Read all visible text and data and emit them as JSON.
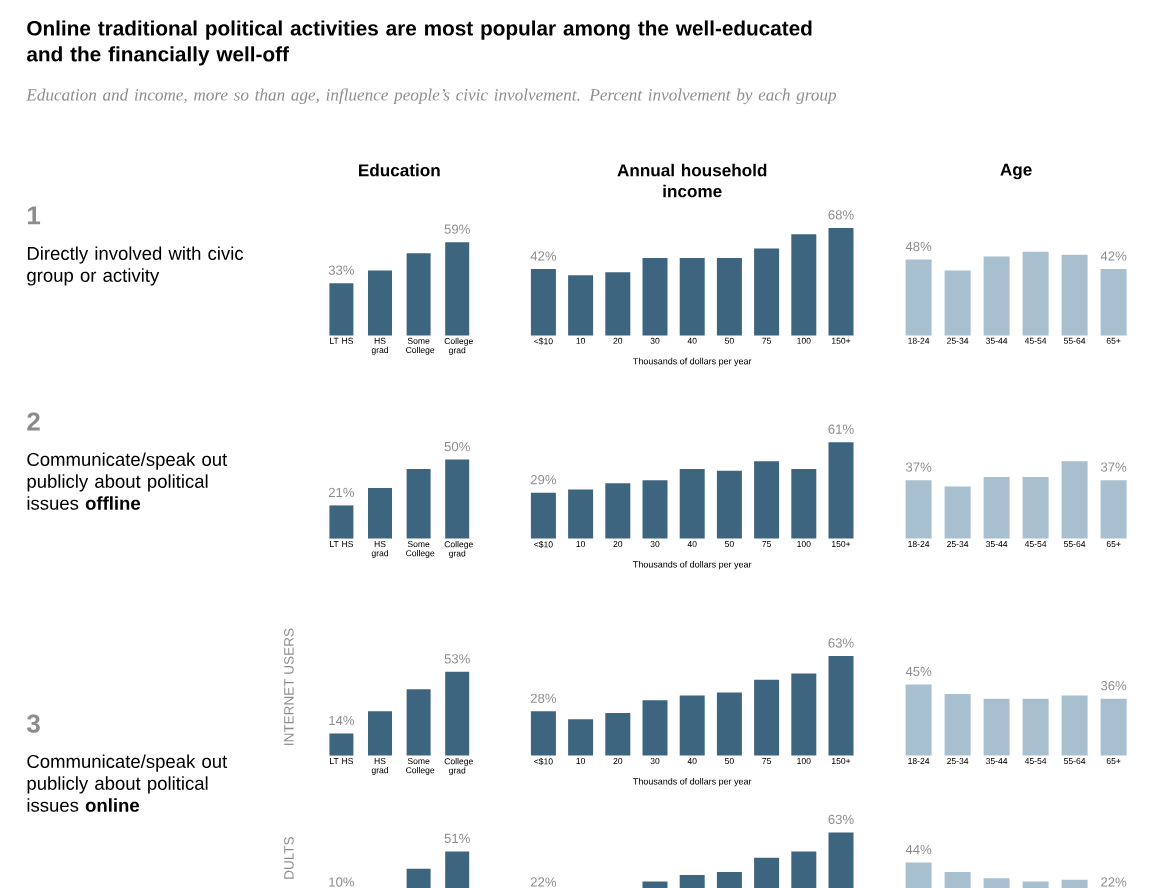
{
  "chart_data": [
    {
      "type": "other",
      "title": "Online traditional political activities are most popular among the well-educated and the financially well-off",
      "subtitle": "Education and income, more so than age, influence people’s civic involvement. Percent involvement by each group",
      "annotations": [
        "1",
        "Directly involved with civic group or activity",
        "2",
        "Communicate/speak out publicly about political issues **offline**",
        "3",
        "Communicate/speak out publicly about political issues **online**"
      ]
    },
    {
      "type": "bar",
      "title": "Education",
      "categories": [
        "LT HS",
        "HS grad",
        "Some College",
        "College grad"
      ],
      "values": [
        33,
        41,
        52,
        59
      ],
      "value_labels": [
        "33%",
        null,
        null,
        "59%"
      ],
      "color": "#3e6580"
    },
    {
      "type": "bar",
      "title": "Annual household income",
      "xlabel": "Thousands of dollars per year",
      "categories": [
        "<$10",
        "10",
        "20",
        "30",
        "40",
        "50",
        "75",
        "100",
        "150+"
      ],
      "values": [
        42,
        38,
        40,
        49,
        49,
        49,
        55,
        64,
        68
      ],
      "value_labels": [
        "42%",
        null,
        null,
        null,
        null,
        null,
        null,
        null,
        "68%"
      ],
      "color": "#3e6580"
    },
    {
      "type": "bar",
      "title": "Age",
      "categories": [
        "18-24",
        "25-34",
        "35-44",
        "45-54",
        "55-64",
        "65+"
      ],
      "values": [
        48,
        41,
        50,
        53,
        51,
        42
      ],
      "value_labels": [
        "48%",
        null,
        null,
        null,
        null,
        "42%"
      ],
      "color": "#a8bfcf"
    },
    {
      "type": "bar",
      "categories": [
        "LT HS",
        "HS grad",
        "Some College",
        "College grad"
      ],
      "values": [
        21,
        32,
        44,
        50
      ],
      "value_labels": [
        "21%",
        null,
        null,
        "50%"
      ],
      "color": "#3e6580"
    },
    {
      "type": "bar",
      "xlabel": "Thousands of dollars per year",
      "categories": [
        "<$10",
        "10",
        "20",
        "30",
        "40",
        "50",
        "75",
        "100",
        "150+"
      ],
      "values": [
        29,
        31,
        35,
        37,
        44,
        43,
        49,
        44,
        61
      ],
      "value_labels": [
        "29%",
        null,
        null,
        null,
        null,
        null,
        null,
        null,
        "61%"
      ],
      "color": "#3e6580"
    },
    {
      "type": "bar",
      "categories": [
        "18-24",
        "25-34",
        "35-44",
        "45-54",
        "55-64",
        "65+"
      ],
      "values": [
        37,
        33,
        39,
        39,
        49,
        37
      ],
      "value_labels": [
        "37%",
        null,
        null,
        null,
        null,
        "37%"
      ],
      "color": "#a8bfcf"
    },
    {
      "type": "bar",
      "ylabel": "INTERNET USERS",
      "categories": [
        "LT HS",
        "HS grad",
        "Some College",
        "College grad"
      ],
      "values": [
        14,
        28,
        42,
        53
      ],
      "value_labels": [
        "14%",
        null,
        null,
        "53%"
      ],
      "color": "#3e6580"
    },
    {
      "type": "bar",
      "xlabel": "Thousands of dollars per year",
      "categories": [
        "<$10",
        "10",
        "20",
        "30",
        "40",
        "50",
        "75",
        "100",
        "150+"
      ],
      "values": [
        28,
        23,
        27,
        35,
        38,
        40,
        48,
        52,
        63
      ],
      "value_labels": [
        "28%",
        null,
        null,
        null,
        null,
        null,
        null,
        null,
        "63%"
      ],
      "color": "#3e6580"
    },
    {
      "type": "bar",
      "categories": [
        "18-24",
        "25-34",
        "35-44",
        "45-54",
        "55-64",
        "65+"
      ],
      "values": [
        45,
        39,
        36,
        36,
        38,
        36
      ],
      "value_labels": [
        "45%",
        null,
        null,
        null,
        null,
        "36%"
      ],
      "color": "#a8bfcf"
    },
    {
      "type": "bar",
      "ylabel": "DULTS",
      "categories": [
        null,
        null,
        null,
        null
      ],
      "values": [
        null,
        null,
        40,
        51
      ],
      "value_labels": [
        "10%",
        null,
        null,
        "51%"
      ],
      "color": "#3e6580"
    },
    {
      "type": "bar",
      "categories": [
        null,
        null,
        null,
        null,
        null,
        null,
        null,
        null,
        null
      ],
      "values": [
        null,
        null,
        null,
        32,
        36,
        38,
        47,
        51,
        63
      ],
      "value_labels": [
        "22%",
        null,
        null,
        null,
        null,
        null,
        null,
        null,
        "63%"
      ],
      "color": "#3e6580"
    },
    {
      "type": "bar",
      "categories": [
        null,
        null,
        null,
        null,
        null,
        null
      ],
      "values": [
        44,
        38,
        34,
        32,
        33,
        null
      ],
      "value_labels": [
        "44%",
        null,
        null,
        null,
        null,
        "22%"
      ],
      "color": "#a8bfcf"
    }
  ]
}
